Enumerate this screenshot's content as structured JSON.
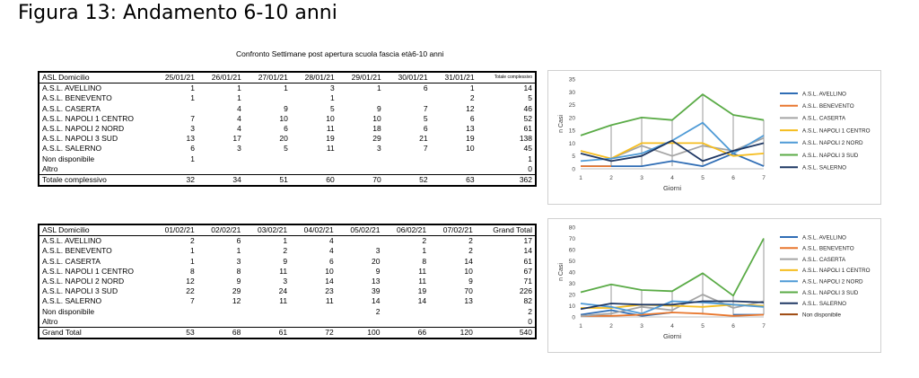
{
  "page": {
    "title": "Figura 13: Andamento 6-10 anni",
    "subtitle": "Confronto Settimane post apertura scuola fascia età6-10 anni"
  },
  "table1": {
    "headers": [
      "ASL Domicilio",
      "25/01/21",
      "26/01/21",
      "27/01/21",
      "28/01/21",
      "29/01/21",
      "30/01/21",
      "31/01/21",
      "Totale complessivo"
    ],
    "rows": [
      [
        "A.S.L. AVELLINO",
        "1",
        "1",
        "1",
        "3",
        "1",
        "6",
        "1",
        "14"
      ],
      [
        "A.S.L. BENEVENTO",
        "1",
        "1",
        "",
        "1",
        "",
        "",
        "2",
        "5"
      ],
      [
        "A.S.L. CASERTA",
        "",
        "4",
        "9",
        "5",
        "9",
        "7",
        "12",
        "46"
      ],
      [
        "A.S.L. NAPOLI 1 CENTRO",
        "7",
        "4",
        "10",
        "10",
        "10",
        "5",
        "6",
        "52"
      ],
      [
        "A.S.L. NAPOLI 2 NORD",
        "3",
        "4",
        "6",
        "11",
        "18",
        "6",
        "13",
        "61"
      ],
      [
        "A.S.L. NAPOLI 3 SUD",
        "13",
        "17",
        "20",
        "19",
        "29",
        "21",
        "19",
        "138"
      ],
      [
        "A.S.L. SALERNO",
        "6",
        "3",
        "5",
        "11",
        "3",
        "7",
        "10",
        "45"
      ],
      [
        "Non disponibile",
        "1",
        "",
        "",
        "",
        "",
        "",
        "",
        "1"
      ],
      [
        "Altro",
        "",
        "",
        "",
        "",
        "",
        "",
        "",
        "0"
      ]
    ],
    "total": [
      "Totale complessivo",
      "32",
      "34",
      "51",
      "60",
      "70",
      "52",
      "63",
      "362"
    ]
  },
  "table2": {
    "headers": [
      "ASL Domicilio",
      "01/02/21",
      "02/02/21",
      "03/02/21",
      "04/02/21",
      "05/02/21",
      "06/02/21",
      "07/02/21",
      "Grand Total"
    ],
    "rows": [
      [
        "A.S.L. AVELLINO",
        "2",
        "6",
        "1",
        "4",
        "",
        "2",
        "2",
        "17"
      ],
      [
        "A.S.L. BENEVENTO",
        "1",
        "1",
        "2",
        "4",
        "3",
        "1",
        "2",
        "14"
      ],
      [
        "A.S.L. CASERTA",
        "1",
        "3",
        "9",
        "6",
        "20",
        "8",
        "14",
        "61"
      ],
      [
        "A.S.L. NAPOLI 1 CENTRO",
        "8",
        "8",
        "11",
        "10",
        "9",
        "11",
        "10",
        "67"
      ],
      [
        "A.S.L. NAPOLI 2 NORD",
        "12",
        "9",
        "3",
        "14",
        "13",
        "11",
        "9",
        "71"
      ],
      [
        "A.S.L. NAPOLI 3 SUD",
        "22",
        "29",
        "24",
        "23",
        "39",
        "19",
        "70",
        "226"
      ],
      [
        "A.S.L. SALERNO",
        "7",
        "12",
        "11",
        "11",
        "14",
        "14",
        "13",
        "82"
      ],
      [
        "Non disponibile",
        "",
        "",
        "",
        "",
        "2",
        "",
        "",
        "2"
      ],
      [
        "Altro",
        "",
        "",
        "",
        "",
        "",
        "",
        "",
        "0"
      ]
    ],
    "total": [
      "Grand Total",
      "53",
      "68",
      "61",
      "72",
      "100",
      "66",
      "120",
      "540"
    ]
  },
  "chart_data": [
    {
      "type": "line",
      "x": [
        1,
        2,
        3,
        4,
        5,
        6,
        7
      ],
      "xlabel": "Giorni",
      "ylabel": "n Casi",
      "ylim": [
        0,
        35
      ],
      "yticks": [
        0,
        5,
        10,
        15,
        20,
        25,
        30,
        35
      ],
      "grid": false,
      "legend": "right",
      "series": [
        {
          "name": "A.S.L. AVELLINO",
          "color": "#2f6db5",
          "values": [
            1,
            1,
            1,
            3,
            1,
            6,
            1
          ]
        },
        {
          "name": "A.S.L. BENEVENTO",
          "color": "#e8772e",
          "values": [
            1,
            1,
            null,
            1,
            null,
            null,
            2
          ]
        },
        {
          "name": "A.S.L. CASERTA",
          "color": "#a5a5a5",
          "values": [
            null,
            4,
            9,
            5,
            9,
            7,
            12
          ]
        },
        {
          "name": "A.S.L. NAPOLI 1 CENTRO",
          "color": "#f5bd1f",
          "values": [
            7,
            4,
            10,
            10,
            10,
            5,
            6
          ]
        },
        {
          "name": "A.S.L. NAPOLI 2 NORD",
          "color": "#4e9ad6",
          "values": [
            3,
            4,
            6,
            11,
            18,
            6,
            13
          ]
        },
        {
          "name": "A.S.L. NAPOLI 3 SUD",
          "color": "#5aab46",
          "values": [
            13,
            17,
            20,
            19,
            29,
            21,
            19
          ]
        },
        {
          "name": "A.S.L. SALERNO",
          "color": "#1f3864",
          "values": [
            6,
            3,
            5,
            11,
            3,
            7,
            10
          ]
        }
      ]
    },
    {
      "type": "line",
      "x": [
        1,
        2,
        3,
        4,
        5,
        6,
        7
      ],
      "xlabel": "Giorni",
      "ylabel": "n Casi",
      "ylim": [
        0,
        80
      ],
      "yticks": [
        0,
        10,
        20,
        30,
        40,
        50,
        60,
        70,
        80
      ],
      "grid": false,
      "legend": "right",
      "series": [
        {
          "name": "A.S.L. AVELLINO",
          "color": "#2f6db5",
          "values": [
            2,
            6,
            1,
            4,
            null,
            2,
            2
          ]
        },
        {
          "name": "A.S.L. BENEVENTO",
          "color": "#e8772e",
          "values": [
            1,
            1,
            2,
            4,
            3,
            1,
            2
          ]
        },
        {
          "name": "A.S.L. CASERTA",
          "color": "#a5a5a5",
          "values": [
            1,
            3,
            9,
            6,
            20,
            8,
            14
          ]
        },
        {
          "name": "A.S.L. NAPOLI 1 CENTRO",
          "color": "#f5bd1f",
          "values": [
            8,
            8,
            11,
            10,
            9,
            11,
            10
          ]
        },
        {
          "name": "A.S.L. NAPOLI 2 NORD",
          "color": "#4e9ad6",
          "values": [
            12,
            9,
            3,
            14,
            13,
            11,
            9
          ]
        },
        {
          "name": "A.S.L. NAPOLI 3 SUD",
          "color": "#5aab46",
          "values": [
            22,
            29,
            24,
            23,
            39,
            19,
            70
          ]
        },
        {
          "name": "A.S.L. SALERNO",
          "color": "#1f3864",
          "values": [
            7,
            12,
            11,
            11,
            14,
            14,
            13
          ]
        },
        {
          "name": "Non disponibile",
          "color": "#9e480e",
          "values": [
            null,
            null,
            null,
            null,
            2,
            null,
            null
          ]
        }
      ]
    }
  ]
}
